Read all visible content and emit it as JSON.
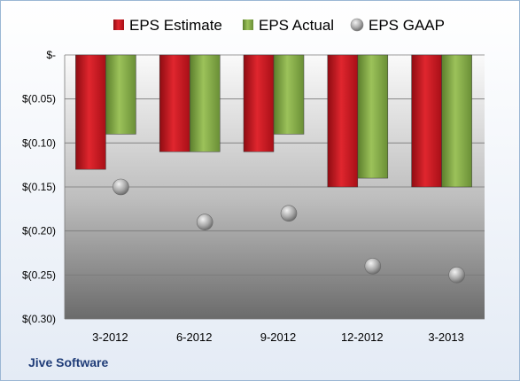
{
  "company": "Jive Software",
  "colors": {
    "estimate": "#c8141e",
    "actual": "#7ea840",
    "gaap": "#b8b8b8"
  },
  "chart_data": {
    "type": "bar",
    "categories": [
      "3-2012",
      "6-2012",
      "9-2012",
      "12-2012",
      "3-2013"
    ],
    "series": [
      {
        "name": "EPS Estimate",
        "type": "bar",
        "values": [
          -0.13,
          -0.11,
          -0.11,
          -0.15,
          -0.15
        ]
      },
      {
        "name": "EPS Actual",
        "type": "bar",
        "values": [
          -0.09,
          -0.11,
          -0.09,
          -0.14,
          -0.15
        ]
      },
      {
        "name": "EPS GAAP",
        "type": "scatter",
        "values": [
          -0.15,
          -0.19,
          -0.18,
          -0.24,
          -0.25
        ]
      }
    ],
    "ylim": [
      -0.3,
      0
    ],
    "yticks": [
      {
        "value": 0,
        "label": "$-"
      },
      {
        "value": -0.05,
        "label": "$(0.05)"
      },
      {
        "value": -0.1,
        "label": "$(0.10)"
      },
      {
        "value": -0.15,
        "label": "$(0.15)"
      },
      {
        "value": -0.2,
        "label": "$(0.20)"
      },
      {
        "value": -0.25,
        "label": "$(0.25)"
      },
      {
        "value": -0.3,
        "label": "$(0.30)"
      }
    ],
    "grid": true,
    "legend": "top"
  }
}
